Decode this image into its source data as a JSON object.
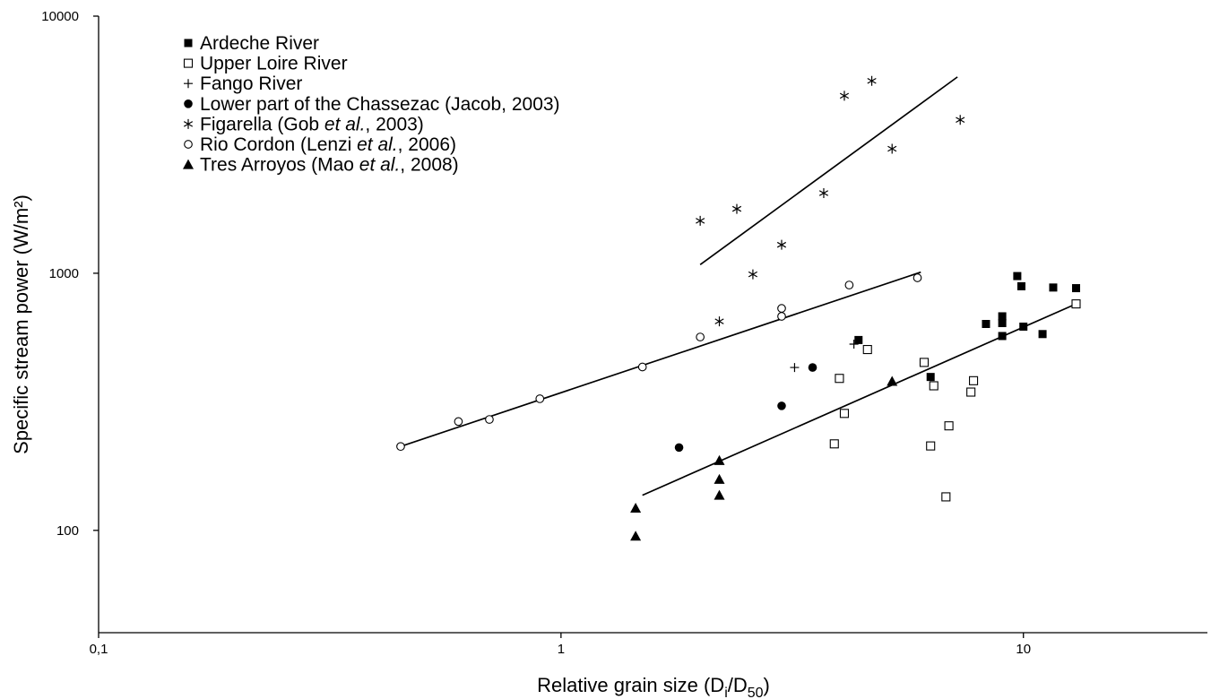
{
  "chart_data": {
    "type": "scatter",
    "xlabel": {
      "main": "Relative grain size (D",
      "sub1": "i",
      "mid": "/D",
      "sub2": "50",
      "end": ")"
    },
    "ylabel": "Specific stream power (W/m²)",
    "xscale": "log",
    "yscale": "log",
    "xlim": [
      0.1,
      25
    ],
    "ylim": [
      40,
      10000
    ],
    "x_ticks": [
      {
        "value": 0.1,
        "label": "0,1"
      },
      {
        "value": 1,
        "label": "1"
      },
      {
        "value": 10,
        "label": "10"
      }
    ],
    "y_ticks": [
      {
        "value": 100,
        "label": "100"
      },
      {
        "value": 1000,
        "label": "1000"
      },
      {
        "value": 10000,
        "label": "10000"
      }
    ],
    "grid": false,
    "legend_position": "top-left",
    "series": [
      {
        "marker": "filled-square",
        "legend": {
          "before": "Ardeche River",
          "italic": "",
          "after": ""
        },
        "points": [
          [
            4.4,
            550
          ],
          [
            6.3,
            395
          ],
          [
            8.3,
            635
          ],
          [
            9.0,
            570
          ],
          [
            9.0,
            640
          ],
          [
            9.0,
            680
          ],
          [
            9.7,
            975
          ],
          [
            9.9,
            890
          ],
          [
            10.0,
            620
          ],
          [
            11.0,
            580
          ],
          [
            11.6,
            880
          ],
          [
            13.0,
            875
          ]
        ]
      },
      {
        "marker": "open-square",
        "legend": {
          "before": "Upper Loire River",
          "italic": "",
          "after": ""
        },
        "points": [
          [
            3.9,
            217
          ],
          [
            4.0,
            390
          ],
          [
            4.1,
            285
          ],
          [
            4.6,
            505
          ],
          [
            6.1,
            450
          ],
          [
            6.3,
            213
          ],
          [
            6.4,
            365
          ],
          [
            6.8,
            135
          ],
          [
            6.9,
            255
          ],
          [
            7.7,
            345
          ],
          [
            7.8,
            382
          ],
          [
            13.0,
            760
          ]
        ]
      },
      {
        "marker": "plus",
        "legend": {
          "before": "Fango River",
          "italic": "",
          "after": ""
        },
        "points": [
          [
            3.2,
            430
          ],
          [
            4.3,
            530
          ]
        ]
      },
      {
        "marker": "filled-circle",
        "legend": {
          "before": "Lower part of the Chassezac (Jacob, 2003)",
          "italic": "",
          "after": ""
        },
        "points": [
          [
            1.8,
            210
          ],
          [
            3.0,
            305
          ],
          [
            3.5,
            430
          ]
        ]
      },
      {
        "marker": "asterisk",
        "legend": {
          "before": "Figarella (Gob ",
          "italic": "et al.",
          "after": ", 2003)"
        },
        "points": [
          [
            2.0,
            1600
          ],
          [
            2.2,
            650
          ],
          [
            2.4,
            1780
          ],
          [
            2.6,
            990
          ],
          [
            3.0,
            1290
          ],
          [
            3.7,
            2050
          ],
          [
            4.1,
            4900
          ],
          [
            4.7,
            5600
          ],
          [
            5.2,
            3050
          ],
          [
            7.3,
            3950
          ]
        ]
      },
      {
        "marker": "open-circle",
        "legend": {
          "before": "Rio Cordon (Lenzi ",
          "italic": "et al.",
          "after": ", 2006)"
        },
        "points": [
          [
            0.45,
            212
          ],
          [
            0.6,
            265
          ],
          [
            0.7,
            270
          ],
          [
            0.9,
            325
          ],
          [
            1.5,
            432
          ],
          [
            2.0,
            565
          ],
          [
            3.0,
            680
          ],
          [
            3.0,
            730
          ],
          [
            4.2,
            900
          ],
          [
            5.9,
            960
          ]
        ]
      },
      {
        "marker": "filled-triangle",
        "legend": {
          "before": "Tres Arroyos (Mao ",
          "italic": "et al.",
          "after": ", 2008)"
        },
        "points": [
          [
            1.45,
            95
          ],
          [
            1.45,
            122
          ],
          [
            2.2,
            137
          ],
          [
            2.2,
            158
          ],
          [
            2.2,
            187
          ],
          [
            5.2,
            380
          ]
        ]
      }
    ],
    "trend_lines": [
      {
        "from": [
          2.0,
          1080
        ],
        "to": [
          7.2,
          5800
        ]
      },
      {
        "from": [
          0.45,
          212
        ],
        "to": [
          6.0,
          1010
        ]
      },
      {
        "from": [
          1.5,
          137
        ],
        "to": [
          13.0,
          760
        ]
      }
    ]
  }
}
